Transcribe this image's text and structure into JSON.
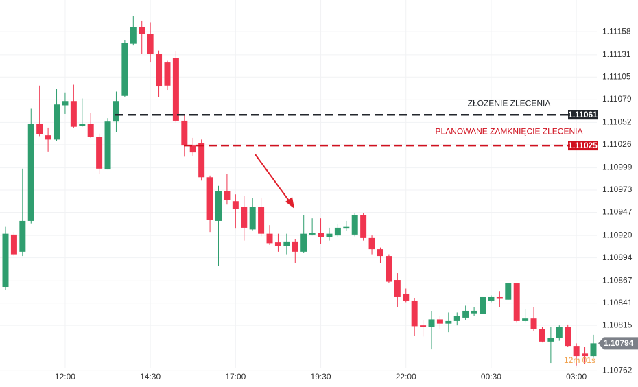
{
  "chart_data": {
    "type": "candlestick",
    "categories": [
      null,
      null,
      null,
      null,
      null,
      null,
      null,
      "12:00",
      null,
      null,
      null,
      null,
      null,
      null,
      null,
      null,
      null,
      "14:30",
      null,
      null,
      null,
      null,
      null,
      null,
      null,
      null,
      null,
      "17:00",
      null,
      null,
      null,
      null,
      null,
      null,
      null,
      null,
      null,
      "19:30",
      null,
      null,
      null,
      null,
      null,
      null,
      null,
      null,
      null,
      "22:00",
      null,
      null,
      null,
      null,
      null,
      null,
      null,
      null,
      null,
      "00:30",
      null,
      null,
      null,
      null,
      null,
      null,
      null,
      null,
      null,
      "03:00",
      null,
      null
    ],
    "open": [
      1.1086,
      1.10921,
      1.10901,
      1.10937,
      1.1105,
      1.11037,
      1.11032,
      1.11072,
      1.11077,
      1.11048,
      1.1105,
      1.11035,
      1.10997,
      1.11053,
      1.11083,
      1.11144,
      1.11163,
      1.11155,
      1.11132,
      1.11122,
      1.11127,
      1.11054,
      1.11025,
      1.11028,
      1.10988,
      1.10937,
      1.10972,
      1.1096,
      1.10953,
      1.10927,
      1.10953,
      1.10922,
      1.10912,
      1.10908,
      1.10913,
      1.10901,
      1.10921,
      1.10923,
      1.10918,
      1.1092,
      1.10928,
      1.10921,
      1.10944,
      1.10917,
      1.10904,
      1.10896,
      1.10868,
      1.10852,
      1.10844,
      1.10815,
      1.10813,
      1.10822,
      1.10817,
      1.1082,
      1.10824,
      1.10829,
      1.10828,
      1.10844,
      1.10848,
      1.10845,
      1.10864,
      1.1082,
      1.10823,
      1.10811,
      1.10796,
      1.108,
      1.10813,
      1.10791,
      1.10782,
      1.10779
    ],
    "high": [
      1.1093,
      1.10924,
      1.10998,
      1.11068,
      1.11095,
      1.11046,
      1.11091,
      1.11087,
      1.11096,
      1.1108,
      1.11063,
      1.11039,
      1.11057,
      1.11088,
      1.11148,
      1.11176,
      1.11171,
      1.11169,
      1.11136,
      1.11124,
      1.11135,
      1.1106,
      1.11034,
      1.11032,
      1.1099,
      1.10978,
      1.10992,
      1.10968,
      1.10966,
      1.10964,
      1.10964,
      1.10932,
      1.10922,
      1.10922,
      1.10916,
      1.10944,
      1.1094,
      1.1094,
      1.10929,
      1.10933,
      1.10937,
      1.10946,
      1.10946,
      1.1092,
      1.10906,
      1.10898,
      1.10876,
      1.10858,
      1.10847,
      1.10821,
      1.10832,
      1.10826,
      1.1083,
      1.1083,
      1.10838,
      1.10836,
      1.10848,
      1.1085,
      1.10855,
      1.10864,
      1.10864,
      1.10834,
      1.10836,
      1.10813,
      1.10813,
      1.10815,
      1.10816,
      1.10794,
      1.1079,
      1.10804
    ],
    "low": [
      1.10856,
      1.10896,
      1.10896,
      1.10934,
      1.11036,
      1.11018,
      1.1103,
      1.11062,
      1.11046,
      1.11047,
      1.11034,
      1.10992,
      1.10997,
      1.11041,
      1.11082,
      1.11142,
      1.11132,
      1.11122,
      1.11082,
      1.1109,
      1.11052,
      1.11012,
      1.11013,
      1.10984,
      1.10924,
      1.10884,
      1.10956,
      1.10928,
      1.10914,
      1.10926,
      1.10919,
      1.10909,
      1.10901,
      1.10898,
      1.10888,
      1.109,
      1.1092,
      1.1091,
      1.10914,
      1.10918,
      1.10925,
      1.10919,
      1.10914,
      1.10898,
      1.10888,
      1.10864,
      1.10836,
      1.10842,
      1.10803,
      1.10802,
      1.10787,
      1.10811,
      1.10807,
      1.10815,
      1.10821,
      1.10826,
      1.10828,
      1.10842,
      1.10836,
      1.10845,
      1.10818,
      1.10818,
      1.10808,
      1.10795,
      1.10771,
      1.10797,
      1.1079,
      1.10768,
      1.1077,
      1.10777
    ],
    "close": [
      1.10922,
      1.10898,
      1.10937,
      1.1105,
      1.11038,
      1.11032,
      1.11073,
      1.11077,
      1.11047,
      1.1105,
      1.11035,
      1.10998,
      1.11053,
      1.11077,
      1.11145,
      1.11163,
      1.11155,
      1.11132,
      1.11094,
      1.11095,
      1.11054,
      1.11025,
      1.11017,
      1.10988,
      1.10938,
      1.10972,
      1.10961,
      1.10951,
      1.10929,
      1.10953,
      1.10922,
      1.10911,
      1.10908,
      1.10913,
      1.10901,
      1.10922,
      1.10923,
      1.10918,
      1.10922,
      1.10929,
      1.1093,
      1.10944,
      1.10917,
      1.10904,
      1.10896,
      1.10866,
      1.10848,
      1.10844,
      1.10814,
      1.10813,
      1.10822,
      1.10817,
      1.1082,
      1.10826,
      1.10832,
      1.10832,
      1.10848,
      1.10848,
      1.10846,
      1.10864,
      1.1082,
      1.10823,
      1.10811,
      1.10796,
      1.108,
      1.10813,
      1.10791,
      1.10779,
      1.10779,
      1.10794
    ],
    "up_color": "#2f9e6f",
    "down_color": "#f0354f",
    "ylim": [
      1.10743,
      1.11195
    ],
    "yticks": [
      1.11158,
      1.11131,
      1.11105,
      1.11079,
      1.11052,
      1.11026,
      1.10999,
      1.10973,
      1.10947,
      {
        "value": 1.1092,
        "label": "1.10920"
      },
      1.10894,
      1.10867,
      1.10841,
      1.10815,
      1.10762
    ],
    "grid": true,
    "horizontal_lines": [
      {
        "label": "ZŁOŻENIE ZLECENIA",
        "value": 1.11061,
        "color": "#23272d"
      },
      {
        "label": "PLANOWANE ZAMKNIĘCIE ZLECENIA",
        "value": 1.11025,
        "color": "#d0111f"
      }
    ],
    "countdown": "12m 01s"
  }
}
